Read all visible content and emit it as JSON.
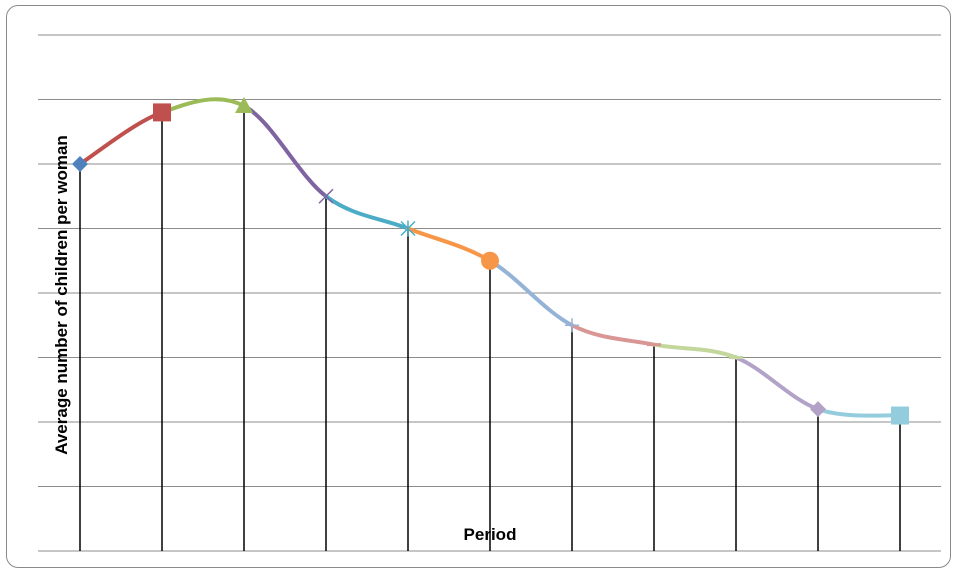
{
  "chart_data": {
    "type": "line",
    "title": "",
    "xlabel": "Period",
    "ylabel": "Average number of children per woman",
    "x": [
      1,
      2,
      3,
      4,
      5,
      6,
      7,
      8,
      9,
      10,
      11
    ],
    "values": [
      6.0,
      6.8,
      6.9,
      5.5,
      5.0,
      4.5,
      3.5,
      3.2,
      3.0,
      2.2,
      2.1
    ],
    "ylim": [
      0,
      8
    ],
    "grid": true,
    "drop_lines": true,
    "segment_colors": [
      "#c0504d",
      "#9bbb59",
      "#8064a2",
      "#4bacc6",
      "#f79646",
      "#95b3d7",
      "#d99694",
      "#c3d69b",
      "#b3a2c7",
      "#93cddd"
    ],
    "markers": [
      {
        "shape": "diamond",
        "color": "#4f81bd"
      },
      {
        "shape": "square",
        "color": "#c0504d"
      },
      {
        "shape": "triangle",
        "color": "#9bbb59"
      },
      {
        "shape": "x",
        "color": "#8064a2"
      },
      {
        "shape": "star",
        "color": "#4bacc6"
      },
      {
        "shape": "circle",
        "color": "#f79646"
      },
      {
        "shape": "plus",
        "color": "#95b3d7"
      },
      {
        "shape": "dash",
        "color": "#d99694"
      },
      {
        "shape": "dash",
        "color": "#c3d69b"
      },
      {
        "shape": "diamond",
        "color": "#b3a2c7"
      },
      {
        "shape": "square",
        "color": "#93cddd"
      }
    ]
  }
}
